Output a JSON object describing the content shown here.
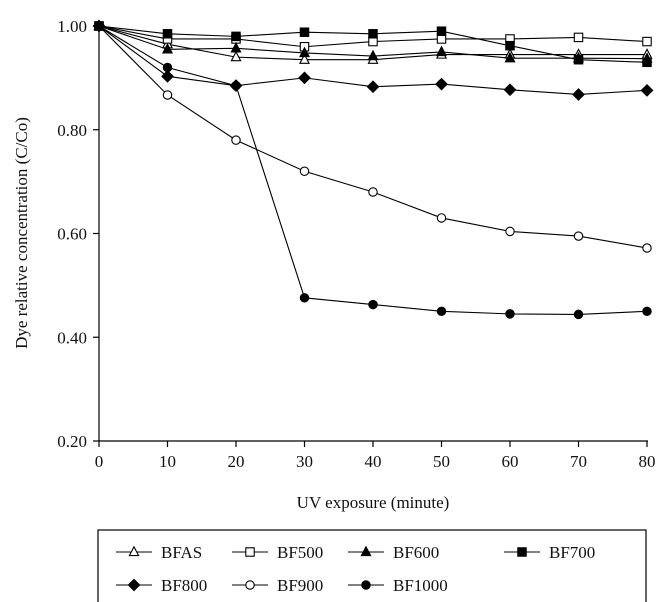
{
  "chart_data": {
    "type": "line",
    "title": "",
    "xlabel": "UV exposure (minute)",
    "ylabel": "Dye relative concentration (C/Co)",
    "xlim": [
      0,
      80
    ],
    "ylim": [
      0.2,
      1.0
    ],
    "x_ticks": [
      0,
      10,
      20,
      30,
      40,
      50,
      60,
      70,
      80
    ],
    "y_ticks": [
      "0.20",
      "0.40",
      "0.60",
      "0.80",
      "1.00"
    ],
    "grid": false,
    "legend_placement": "bottom",
    "x": [
      0,
      10,
      20,
      30,
      40,
      50,
      60,
      70,
      80
    ],
    "series": [
      {
        "name": "BFAS",
        "marker": "triangle-open",
        "values": [
          1.0,
          0.965,
          0.94,
          0.935,
          0.935,
          0.945,
          0.945,
          0.945,
          0.945
        ]
      },
      {
        "name": "BF500",
        "marker": "square-open",
        "values": [
          1.0,
          0.975,
          0.975,
          0.96,
          0.97,
          0.975,
          0.975,
          0.978,
          0.97
        ]
      },
      {
        "name": "BF600",
        "marker": "triangle-filled",
        "values": [
          1.0,
          0.955,
          0.957,
          0.948,
          0.942,
          0.95,
          0.938,
          0.938,
          0.937
        ]
      },
      {
        "name": "BF700",
        "marker": "square-filled",
        "values": [
          1.0,
          0.985,
          0.98,
          0.988,
          0.985,
          0.99,
          0.962,
          0.935,
          0.93
        ]
      },
      {
        "name": "BF800",
        "marker": "diamond-filled",
        "values": [
          1.0,
          0.903,
          0.885,
          0.9,
          0.883,
          0.888,
          0.877,
          0.868,
          0.876
        ]
      },
      {
        "name": "BF900",
        "marker": "circle-open",
        "values": [
          1.0,
          0.867,
          0.78,
          0.72,
          0.68,
          0.63,
          0.604,
          0.595,
          0.572
        ]
      },
      {
        "name": "BF1000",
        "marker": "circle-filled",
        "values": [
          1.0,
          0.92,
          0.885,
          0.476,
          0.463,
          0.45,
          0.445,
          0.444,
          0.45
        ]
      }
    ]
  }
}
